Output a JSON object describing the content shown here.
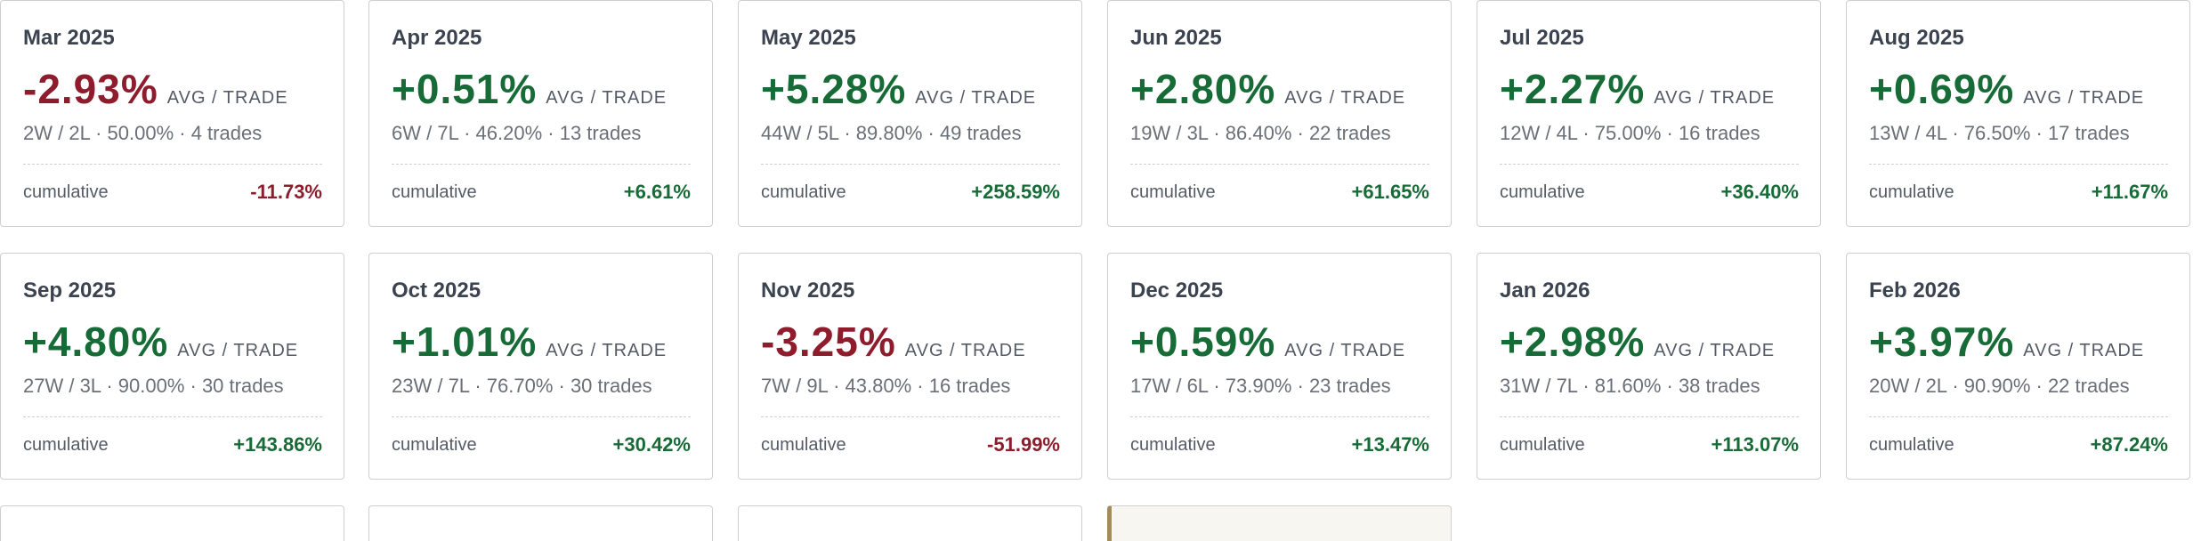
{
  "cards": [
    {
      "month": "Mar 2025",
      "avg": "-2.93%",
      "avg_label": "AVG / TRADE",
      "stats": "2W / 2L · 50.00% · 4 trades",
      "cum_label": "cumulative",
      "cum": "-11.73%",
      "avg_sign": "neg",
      "cum_sign": "neg"
    },
    {
      "month": "Apr 2025",
      "avg": "+0.51%",
      "avg_label": "AVG / TRADE",
      "stats": "6W / 7L · 46.20% · 13 trades",
      "cum_label": "cumulative",
      "cum": "+6.61%",
      "avg_sign": "pos",
      "cum_sign": "pos"
    },
    {
      "month": "May 2025",
      "avg": "+5.28%",
      "avg_label": "AVG / TRADE",
      "stats": "44W / 5L · 89.80% · 49 trades",
      "cum_label": "cumulative",
      "cum": "+258.59%",
      "avg_sign": "pos",
      "cum_sign": "pos"
    },
    {
      "month": "Jun 2025",
      "avg": "+2.80%",
      "avg_label": "AVG / TRADE",
      "stats": "19W / 3L · 86.40% · 22 trades",
      "cum_label": "cumulative",
      "cum": "+61.65%",
      "avg_sign": "pos",
      "cum_sign": "pos"
    },
    {
      "month": "Jul 2025",
      "avg": "+2.27%",
      "avg_label": "AVG / TRADE",
      "stats": "12W / 4L · 75.00% · 16 trades",
      "cum_label": "cumulative",
      "cum": "+36.40%",
      "avg_sign": "pos",
      "cum_sign": "pos"
    },
    {
      "month": "Aug 2025",
      "avg": "+0.69%",
      "avg_label": "AVG / TRADE",
      "stats": "13W / 4L · 76.50% · 17 trades",
      "cum_label": "cumulative",
      "cum": "+11.67%",
      "avg_sign": "pos",
      "cum_sign": "pos"
    },
    {
      "month": "Sep 2025",
      "avg": "+4.80%",
      "avg_label": "AVG / TRADE",
      "stats": "27W / 3L · 90.00% · 30 trades",
      "cum_label": "cumulative",
      "cum": "+143.86%",
      "avg_sign": "pos",
      "cum_sign": "pos"
    },
    {
      "month": "Oct 2025",
      "avg": "+1.01%",
      "avg_label": "AVG / TRADE",
      "stats": "23W / 7L · 76.70% · 30 trades",
      "cum_label": "cumulative",
      "cum": "+30.42%",
      "avg_sign": "pos",
      "cum_sign": "pos"
    },
    {
      "month": "Nov 2025",
      "avg": "-3.25%",
      "avg_label": "AVG / TRADE",
      "stats": "7W / 9L · 43.80% · 16 trades",
      "cum_label": "cumulative",
      "cum": "-51.99%",
      "avg_sign": "neg",
      "cum_sign": "neg"
    },
    {
      "month": "Dec 2025",
      "avg": "+0.59%",
      "avg_label": "AVG / TRADE",
      "stats": "17W / 6L · 73.90% · 23 trades",
      "cum_label": "cumulative",
      "cum": "+13.47%",
      "avg_sign": "pos",
      "cum_sign": "pos"
    },
    {
      "month": "Jan 2026",
      "avg": "+2.98%",
      "avg_label": "AVG / TRADE",
      "stats": "31W / 7L · 81.60% · 38 trades",
      "cum_label": "cumulative",
      "cum": "+113.07%",
      "avg_sign": "pos",
      "cum_sign": "pos"
    },
    {
      "month": "Feb 2026",
      "avg": "+3.97%",
      "avg_label": "AVG / TRADE",
      "stats": "20W / 2L · 90.90% · 22 trades",
      "cum_label": "cumulative",
      "cum": "+87.24%",
      "avg_sign": "pos",
      "cum_sign": "pos"
    }
  ],
  "colors": {
    "positive": "#176b37",
    "negative": "#8e1c2c",
    "border": "#cfcfcf",
    "highlight_bg": "#f7f6f0",
    "highlight_accent": "#a38a5f"
  }
}
